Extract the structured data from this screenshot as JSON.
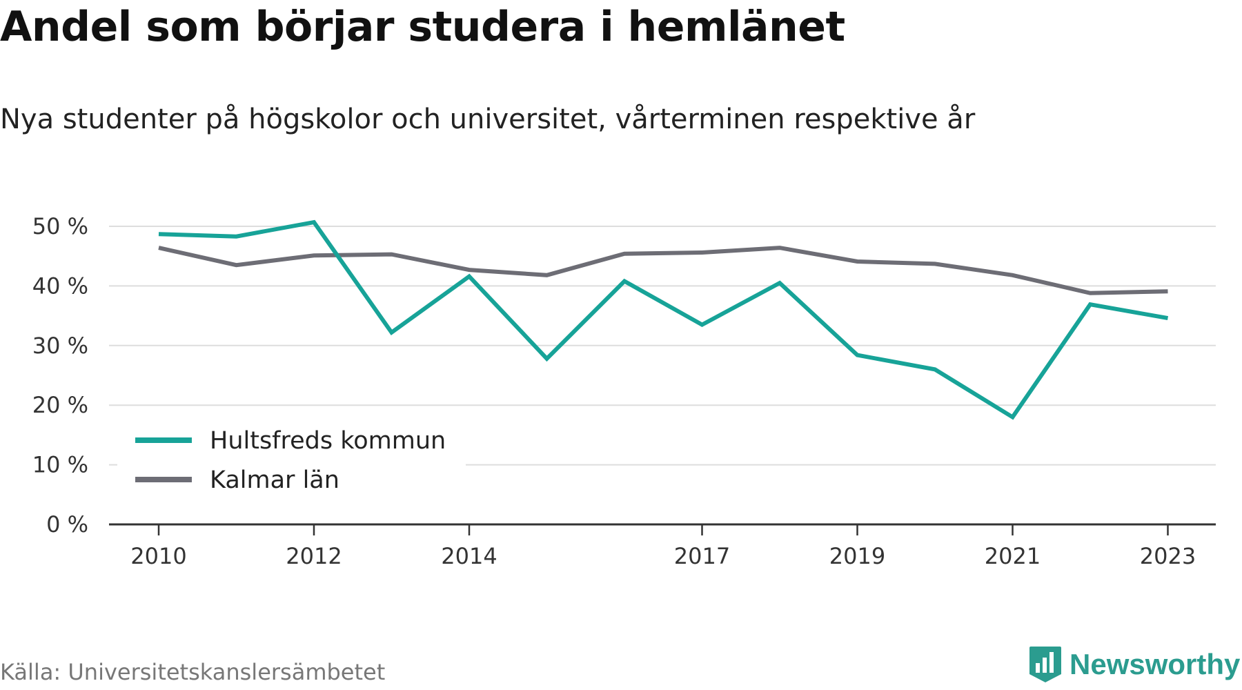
{
  "title": "Andel som börjar studera i hemlänet",
  "subtitle": "Nya studenter på högskolor och universitet, vårterminen respektive år",
  "source": "Källa: Universitetskanslersämbetet",
  "logo_text": "Newsworthy",
  "colors": {
    "hultsfred": "#17a398",
    "kalmar": "#6d6d75",
    "grid": "#dddddd",
    "axis": "#333333",
    "logo": "#2b9c8f"
  },
  "chart_data": {
    "type": "line",
    "x": [
      2010,
      2011,
      2012,
      2013,
      2014,
      2015,
      2016,
      2017,
      2018,
      2019,
      2020,
      2021,
      2022,
      2023
    ],
    "xticks": [
      2010,
      2012,
      2014,
      2017,
      2019,
      2021,
      2023
    ],
    "xtick_labels": [
      "2010",
      "2012",
      "2014",
      "2017",
      "2019",
      "2021",
      "2023"
    ],
    "yticks": [
      0,
      10,
      20,
      30,
      40,
      50
    ],
    "ytick_labels": [
      "0 %",
      "10 %",
      "20 %",
      "30 %",
      "40 %",
      "50 %"
    ],
    "ylim": [
      0,
      50
    ],
    "grid": true,
    "legend_position": "bottom-left",
    "series": [
      {
        "name": "Hultsfreds kommun",
        "color": "#17a398",
        "values": [
          48.7,
          48.3,
          50.7,
          32.2,
          41.6,
          27.8,
          40.8,
          33.5,
          40.5,
          28.4,
          26.0,
          18.0,
          36.9,
          34.6
        ]
      },
      {
        "name": "Kalmar län",
        "color": "#6d6d75",
        "values": [
          46.4,
          43.5,
          45.1,
          45.3,
          42.7,
          41.8,
          45.4,
          45.6,
          46.4,
          44.1,
          43.7,
          41.8,
          38.8,
          39.1
        ]
      }
    ]
  }
}
